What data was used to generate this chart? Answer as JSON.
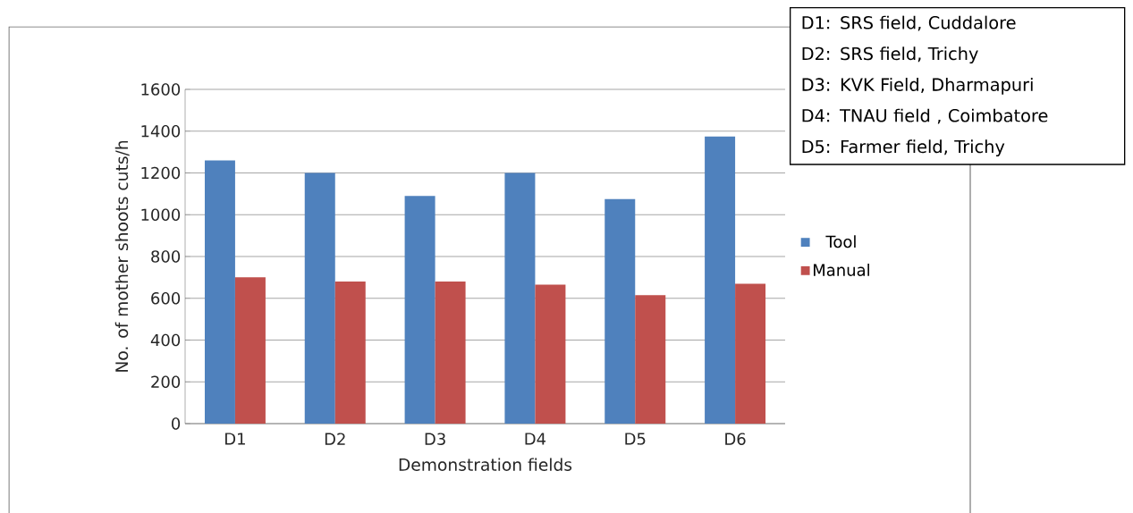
{
  "chart_data": {
    "type": "bar",
    "xlabel": "Demonstration fields",
    "ylabel": "No. of mother shoots cuts/h",
    "categories": [
      "D1",
      "D2",
      "D3",
      "D4",
      "D5",
      "D6"
    ],
    "series": [
      {
        "name": "Tool",
        "color": "#4f81bd",
        "values": [
          1260,
          1200,
          1090,
          1200,
          1075,
          1375
        ]
      },
      {
        "name": "Manual",
        "color": "#c0504d",
        "values": [
          700,
          680,
          680,
          665,
          615,
          670
        ]
      }
    ],
    "ylim": [
      0,
      1600
    ],
    "yticks": [
      0,
      200,
      400,
      600,
      800,
      1000,
      1200,
      1400,
      1600
    ],
    "grid": "y",
    "legend": "right",
    "annotations": [
      "D1: SRS field, Cuddalore",
      "D2: SRS field, Trichy",
      "D3: KVK Field, Dharmapuri",
      "D4: TNAU field , Coimbatore",
      "D5: Farmer field, Trichy"
    ]
  }
}
